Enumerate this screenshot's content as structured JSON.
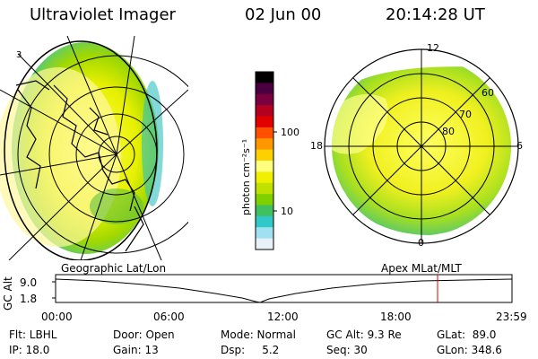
{
  "header": {
    "title": "Ultraviolet Imager",
    "date": "02 Jun 00",
    "time": "20:14:28 UT"
  },
  "left_panel": {
    "corner_mark": "3",
    "caption": "Geographic Lat/Lon"
  },
  "colorbar": {
    "label": "photon cm⁻²s⁻¹",
    "ticks": [
      "100",
      "10"
    ],
    "colors": [
      "#000000",
      "#4a0040",
      "#7a0040",
      "#b40020",
      "#e00000",
      "#ff5000",
      "#ff9800",
      "#ffd000",
      "#ffff80",
      "#f0f000",
      "#c0e000",
      "#80d000",
      "#40c060",
      "#30c8c8",
      "#a0e0f0",
      "#e8f0f8"
    ]
  },
  "right_panel": {
    "caption": "Apex MLat/MLT",
    "mlt_labels": {
      "top": "12",
      "bottom": "0",
      "left": "18",
      "right": "6"
    },
    "lat_labels": [
      "60",
      "70",
      "80"
    ]
  },
  "altitude_plot": {
    "axis_label": "GC Alt",
    "y_ticks": [
      "9.0",
      "1.8"
    ],
    "x_ticks": [
      "00:00",
      "06:00",
      "12:00",
      "18:00",
      "23:59"
    ]
  },
  "info": {
    "flt": "Flt: LBHL",
    "ip": "IP: 18.0",
    "door": "Door: Open",
    "gain": "Gain: 13",
    "mode": "Mode: Normal",
    "dsp": "Dsp:     5.2",
    "gcalt": "GC Alt: 9.3 Re",
    "seq": "Seq: 30",
    "glat": "GLat:  89.0",
    "glon": "GLon: 348.6"
  }
}
